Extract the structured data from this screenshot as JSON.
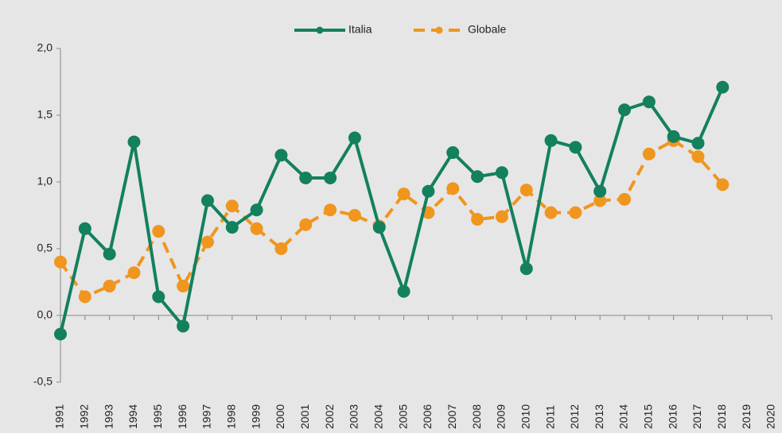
{
  "chart_data": {
    "type": "line",
    "categories": [
      "1991",
      "1992",
      "1993",
      "1994",
      "1995",
      "1996",
      "1997",
      "1998",
      "1999",
      "2000",
      "2001",
      "2002",
      "2003",
      "2004",
      "2005",
      "2006",
      "2007",
      "2008",
      "2009",
      "2010",
      "2011",
      "2012",
      "2013",
      "2014",
      "2015",
      "2016",
      "2017",
      "2018",
      "2019",
      "2020"
    ],
    "series": [
      {
        "name": "Italia",
        "color": "#13805e",
        "dash": false,
        "values": [
          -0.14,
          0.65,
          0.46,
          1.3,
          0.14,
          -0.08,
          0.86,
          0.66,
          0.79,
          1.2,
          1.03,
          1.03,
          1.33,
          0.66,
          0.18,
          0.93,
          1.22,
          1.04,
          1.07,
          0.35,
          1.31,
          1.26,
          0.93,
          1.54,
          1.6,
          1.34,
          1.29,
          1.71,
          null,
          null
        ]
      },
      {
        "name": "Globale",
        "color": "#f0961e",
        "dash": true,
        "values": [
          0.4,
          0.14,
          0.22,
          0.32,
          0.63,
          0.22,
          0.55,
          0.82,
          0.65,
          0.5,
          0.68,
          0.79,
          0.75,
          0.67,
          0.91,
          0.77,
          0.95,
          0.72,
          0.74,
          0.94,
          0.77,
          0.77,
          0.86,
          0.87,
          1.21,
          1.31,
          1.19,
          0.98,
          null,
          null
        ]
      }
    ],
    "ylim": [
      -0.5,
      2.0
    ],
    "yticks": [
      {
        "value": -0.5,
        "label": "-0,5"
      },
      {
        "value": 0,
        "label": "0,0"
      },
      {
        "value": 0.5,
        "label": "0,5"
      },
      {
        "value": 1.0,
        "label": "1,0"
      },
      {
        "value": 1.5,
        "label": "1,5"
      },
      {
        "value": 2.0,
        "label": "2,0"
      }
    ],
    "legend": "top"
  }
}
